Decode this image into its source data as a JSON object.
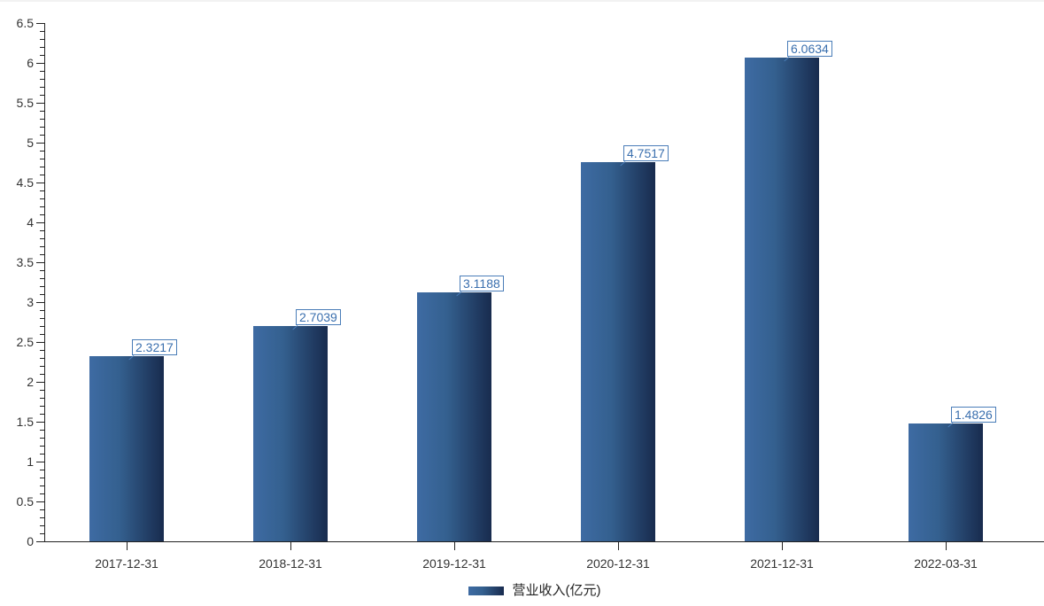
{
  "chart_data": {
    "type": "bar",
    "title": "",
    "xlabel": "",
    "ylabel": "",
    "categories": [
      "2017-12-31",
      "2018-12-31",
      "2019-12-31",
      "2020-12-31",
      "2021-12-31",
      "2022-03-31"
    ],
    "series": [
      {
        "name": "营业收入(亿元)",
        "values": [
          2.3217,
          2.7039,
          3.1188,
          4.7517,
          6.0634,
          1.4826
        ]
      }
    ],
    "value_labels": [
      "2.3217",
      "2.7039",
      "3.1188",
      "4.7517",
      "6.0634",
      "1.4826"
    ],
    "ylim": [
      0,
      6.5
    ],
    "y_major_step": 0.5,
    "y_minor_step": 0.1,
    "grid": false,
    "legend": {
      "position": "bottom",
      "items": [
        "营业收入(亿元)"
      ]
    },
    "colors": {
      "bar_gradient_start": "#3e6ba3",
      "bar_gradient_end": "#182b4e",
      "value_label_text": "#3a6fae",
      "value_label_border": "#4a7db8",
      "axis": "#222222",
      "tick_label": "#333333",
      "legend_text": "#222222"
    }
  }
}
